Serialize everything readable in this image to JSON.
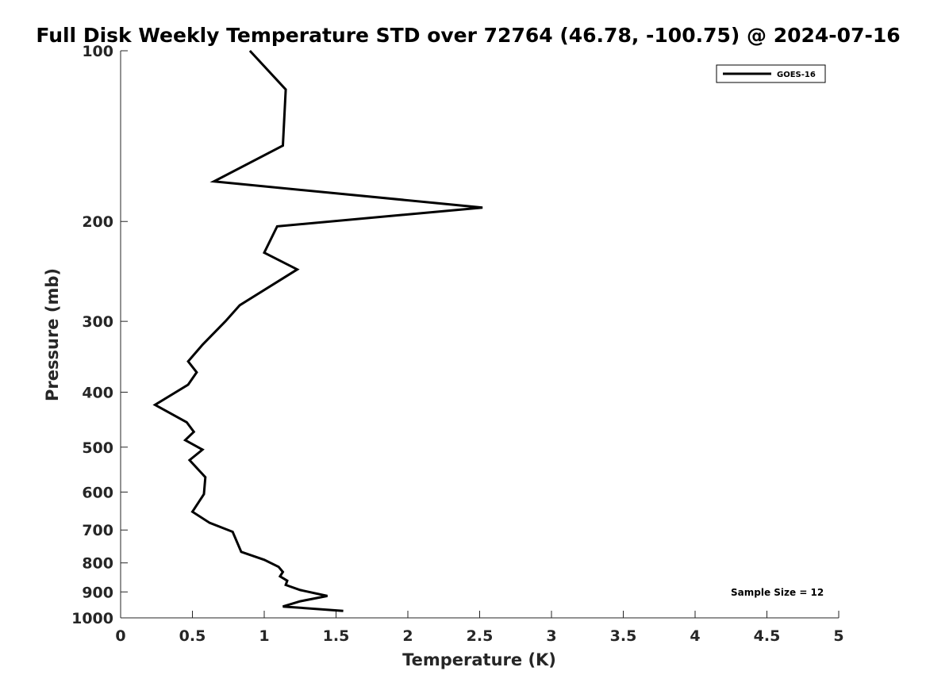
{
  "chart_data": {
    "type": "line",
    "title": "Full Disk Weekly Temperature STD over 72764 (46.78, -100.75) @ 2024-07-16",
    "xlabel": "Temperature (K)",
    "ylabel": "Pressure (mb)",
    "xlim": [
      0,
      5
    ],
    "ylim": [
      100,
      1000
    ],
    "y_scale": "log",
    "y_reversed": true,
    "x_ticks": [
      0,
      0.5,
      1,
      1.5,
      2,
      2.5,
      3,
      3.5,
      4,
      4.5,
      5
    ],
    "x_tick_labels": [
      "0",
      "0.5",
      "1",
      "1.5",
      "2",
      "2.5",
      "3",
      "3.5",
      "4",
      "4.5",
      "5"
    ],
    "y_ticks": [
      100,
      200,
      300,
      400,
      500,
      600,
      700,
      800,
      900,
      1000
    ],
    "y_tick_labels": [
      "100",
      "200",
      "300",
      "400",
      "500",
      "600",
      "700",
      "800",
      "900",
      "1000"
    ],
    "grid": false,
    "legend_position": "top-right",
    "annotation": "Sample Size = 12",
    "series": [
      {
        "name": "GOES-16",
        "color": "#000000",
        "points": [
          [
            0.9,
            100
          ],
          [
            1.15,
            117
          ],
          [
            1.13,
            147
          ],
          [
            0.65,
            170
          ],
          [
            2.52,
            189
          ],
          [
            1.09,
            204
          ],
          [
            1.0,
            227
          ],
          [
            1.23,
            243
          ],
          [
            0.83,
            281
          ],
          [
            0.73,
            300
          ],
          [
            0.57,
            330
          ],
          [
            0.47,
            353
          ],
          [
            0.53,
            369
          ],
          [
            0.47,
            388
          ],
          [
            0.24,
            421
          ],
          [
            0.46,
            452
          ],
          [
            0.51,
            470
          ],
          [
            0.45,
            486
          ],
          [
            0.57,
            505
          ],
          [
            0.48,
            527
          ],
          [
            0.59,
            565
          ],
          [
            0.58,
            605
          ],
          [
            0.5,
            650
          ],
          [
            0.62,
            680
          ],
          [
            0.78,
            705
          ],
          [
            0.84,
            765
          ],
          [
            1.0,
            790
          ],
          [
            1.1,
            813
          ],
          [
            1.13,
            830
          ],
          [
            1.11,
            845
          ],
          [
            1.16,
            860
          ],
          [
            1.15,
            875
          ],
          [
            1.25,
            893
          ],
          [
            1.44,
            915
          ],
          [
            1.25,
            935
          ],
          [
            1.13,
            955
          ],
          [
            1.55,
            972
          ]
        ]
      }
    ]
  }
}
